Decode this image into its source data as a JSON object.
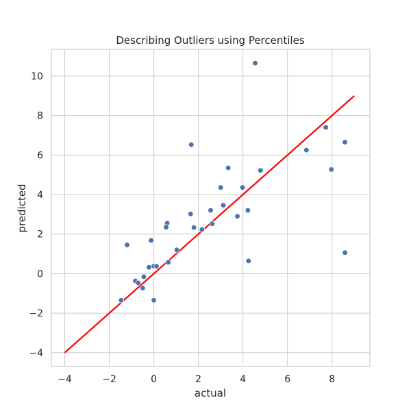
{
  "chart_data": {
    "type": "scatter",
    "title": "Describing Outliers using Percentiles",
    "xlabel": "actual",
    "ylabel": "predicted",
    "xlim": [
      -4.6,
      9.7
    ],
    "ylim": [
      -4.7,
      11.35
    ],
    "x_ticks": [
      -4,
      -2,
      0,
      2,
      4,
      6,
      8
    ],
    "y_ticks": [
      -4,
      -2,
      0,
      2,
      4,
      6,
      8,
      10
    ],
    "grid": true,
    "series": [
      {
        "type": "scatter",
        "color": "#4c72b0",
        "points": [
          [
            4.55,
            10.65
          ],
          [
            1.68,
            6.52
          ],
          [
            7.72,
            7.4
          ],
          [
            6.85,
            6.25
          ],
          [
            8.58,
            6.65
          ],
          [
            7.97,
            5.27
          ],
          [
            3.34,
            5.35
          ],
          [
            4.79,
            5.22
          ],
          [
            3.0,
            4.36
          ],
          [
            3.98,
            4.36
          ],
          [
            3.12,
            3.46
          ],
          [
            2.55,
            3.2
          ],
          [
            4.22,
            3.2
          ],
          [
            1.65,
            3.02
          ],
          [
            3.75,
            2.9
          ],
          [
            0.6,
            2.55
          ],
          [
            2.62,
            2.52
          ],
          [
            0.55,
            2.35
          ],
          [
            1.8,
            2.33
          ],
          [
            2.16,
            2.23
          ],
          [
            -1.2,
            1.45
          ],
          [
            -0.12,
            1.68
          ],
          [
            1.03,
            1.2
          ],
          [
            8.58,
            1.06
          ],
          [
            4.25,
            0.64
          ],
          [
            0.65,
            0.57
          ],
          [
            -0.22,
            0.32
          ],
          [
            0.0,
            0.38
          ],
          [
            0.12,
            0.37
          ],
          [
            -0.45,
            -0.16
          ],
          [
            -0.83,
            -0.37
          ],
          [
            -0.7,
            -0.47
          ],
          [
            -0.5,
            -0.73
          ],
          [
            -1.47,
            -1.35
          ],
          [
            0.0,
            -1.35
          ]
        ]
      },
      {
        "type": "line",
        "color": "#ff0000",
        "points": [
          [
            -4,
            -4
          ],
          [
            9,
            9
          ]
        ]
      }
    ]
  }
}
